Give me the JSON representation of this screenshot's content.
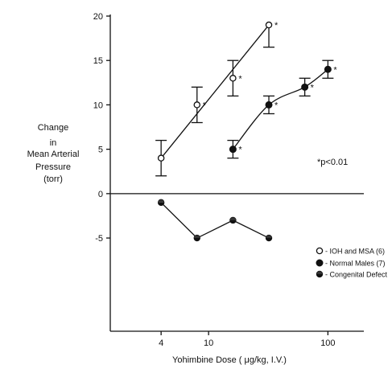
{
  "chart_data": {
    "type": "scatter",
    "xscale": "log",
    "xlabel": "Yohimbine Dose ( μg/kg, I.V.)",
    "ylabel_lines": [
      "Change",
      "in",
      "Mean Arterial",
      "Pressure",
      "(torr)"
    ],
    "xticks": [
      {
        "value": 4,
        "label": "4"
      },
      {
        "value": 10,
        "label": "10"
      },
      {
        "value": 100,
        "label": "100"
      }
    ],
    "yticks": [
      {
        "value": 20,
        "label": "20"
      },
      {
        "value": 15,
        "label": "15"
      },
      {
        "value": 10,
        "label": "10"
      },
      {
        "value": 5,
        "label": "5"
      },
      {
        "value": 0,
        "label": "0"
      },
      {
        "value": -5,
        "label": "-5"
      }
    ],
    "xlim": [
      1.5,
      200
    ],
    "ylim": [
      -15.5,
      20
    ],
    "significance_note": "*p<0.01",
    "significance_marker": "*",
    "series": [
      {
        "name": "IOH and MSA (6)",
        "marker": "open-circle",
        "fit": "line",
        "points": [
          {
            "x": 4,
            "y": 4,
            "err": 2,
            "sig": false
          },
          {
            "x": 8,
            "y": 10,
            "err": 2,
            "sig": true
          },
          {
            "x": 16,
            "y": 13,
            "err": 2,
            "sig": true
          },
          {
            "x": 32,
            "y": 19,
            "err": 2.5,
            "sig": true,
            "cap": "down"
          }
        ]
      },
      {
        "name": "Normal Males (7)",
        "marker": "filled-circle",
        "fit": "curve",
        "points": [
          {
            "x": 16,
            "y": 5,
            "err": 1,
            "sig": true
          },
          {
            "x": 32,
            "y": 10,
            "err": 1,
            "sig": true
          },
          {
            "x": 64,
            "y": 12,
            "err": 1,
            "sig": true
          },
          {
            "x": 100,
            "y": 14,
            "err": 1,
            "sig": true
          }
        ]
      },
      {
        "name": "Congenital Defect",
        "marker": "half-filled-circle",
        "fit": "polyline",
        "points": [
          {
            "x": 4,
            "y": -1
          },
          {
            "x": 8,
            "y": -5
          },
          {
            "x": 16,
            "y": -3
          },
          {
            "x": 32,
            "y": -5
          }
        ]
      }
    ]
  }
}
